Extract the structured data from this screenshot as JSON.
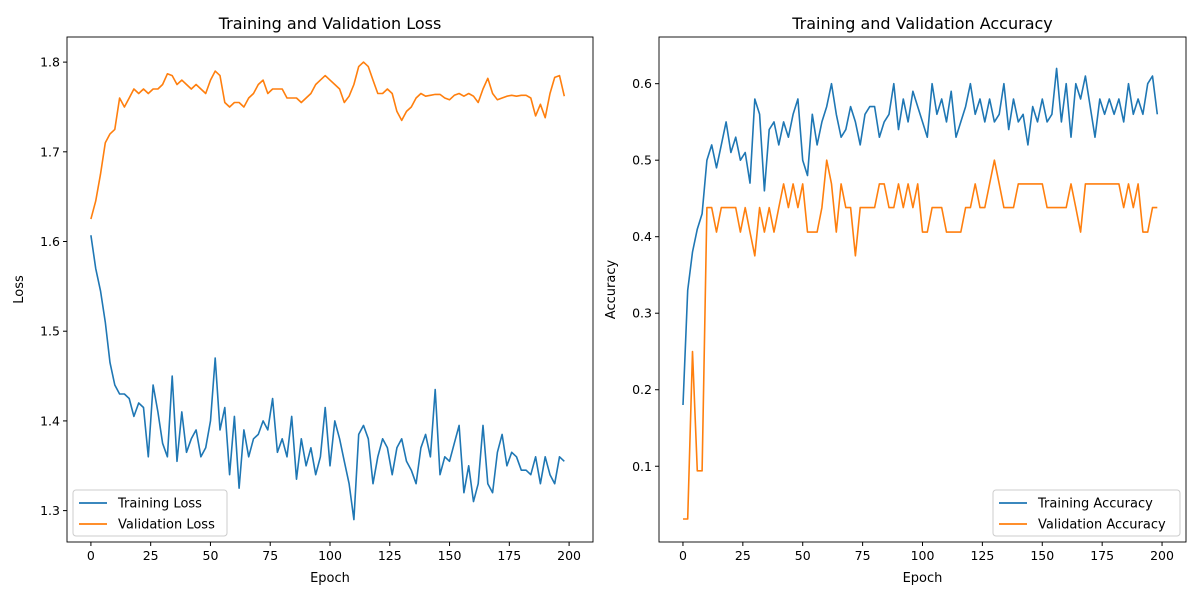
{
  "chart_data": [
    {
      "type": "line",
      "title": "Training and Validation Loss",
      "xlabel": "Epoch",
      "ylabel": "Loss",
      "xlim": [
        -10,
        210
      ],
      "ylim": [
        1.265,
        1.828
      ],
      "xticks": [
        0,
        25,
        50,
        75,
        100,
        125,
        150,
        175,
        200
      ],
      "yticks": [
        1.3,
        1.4,
        1.5,
        1.6,
        1.7,
        1.8
      ],
      "ytick_labels": [
        "1.3",
        "1.4",
        "1.5",
        "1.6",
        "1.7",
        "1.8"
      ],
      "legend_position": "lower-left",
      "grid": false,
      "x_step": 2,
      "series": [
        {
          "name": "Training Loss",
          "color": "#1f77b4",
          "values": [
            1.607,
            1.57,
            1.545,
            1.51,
            1.465,
            1.44,
            1.43,
            1.43,
            1.425,
            1.405,
            1.42,
            1.415,
            1.36,
            1.44,
            1.41,
            1.375,
            1.36,
            1.45,
            1.355,
            1.41,
            1.365,
            1.38,
            1.39,
            1.36,
            1.37,
            1.4,
            1.47,
            1.39,
            1.415,
            1.34,
            1.405,
            1.325,
            1.39,
            1.36,
            1.38,
            1.385,
            1.4,
            1.39,
            1.425,
            1.365,
            1.38,
            1.36,
            1.405,
            1.335,
            1.38,
            1.35,
            1.37,
            1.34,
            1.36,
            1.415,
            1.35,
            1.4,
            1.38,
            1.355,
            1.33,
            1.29,
            1.385,
            1.395,
            1.38,
            1.33,
            1.36,
            1.38,
            1.37,
            1.34,
            1.37,
            1.38,
            1.355,
            1.345,
            1.33,
            1.37,
            1.385,
            1.36,
            1.435,
            1.34,
            1.36,
            1.355,
            1.375,
            1.395,
            1.32,
            1.35,
            1.31,
            1.33,
            1.395,
            1.33,
            1.32,
            1.365,
            1.385,
            1.35,
            1.365,
            1.36,
            1.345,
            1.345,
            1.34,
            1.36,
            1.33,
            1.36,
            1.34,
            1.33,
            1.36,
            1.355
          ]
        },
        {
          "name": "Validation Loss",
          "color": "#ff7f0e",
          "values": [
            1.625,
            1.645,
            1.675,
            1.71,
            1.72,
            1.725,
            1.76,
            1.75,
            1.76,
            1.77,
            1.765,
            1.77,
            1.765,
            1.77,
            1.77,
            1.775,
            1.787,
            1.785,
            1.775,
            1.78,
            1.775,
            1.77,
            1.775,
            1.77,
            1.765,
            1.78,
            1.79,
            1.785,
            1.755,
            1.75,
            1.755,
            1.755,
            1.75,
            1.76,
            1.765,
            1.775,
            1.78,
            1.765,
            1.77,
            1.77,
            1.77,
            1.76,
            1.76,
            1.76,
            1.755,
            1.76,
            1.765,
            1.775,
            1.78,
            1.785,
            1.78,
            1.775,
            1.77,
            1.755,
            1.762,
            1.775,
            1.795,
            1.8,
            1.795,
            1.78,
            1.765,
            1.765,
            1.77,
            1.765,
            1.745,
            1.735,
            1.745,
            1.75,
            1.76,
            1.765,
            1.762,
            1.763,
            1.764,
            1.764,
            1.76,
            1.758,
            1.763,
            1.765,
            1.762,
            1.765,
            1.762,
            1.755,
            1.77,
            1.782,
            1.765,
            1.758,
            1.76,
            1.762,
            1.763,
            1.762,
            1.763,
            1.763,
            1.76,
            1.74,
            1.753,
            1.738,
            1.765,
            1.783,
            1.785,
            1.762
          ]
        }
      ]
    },
    {
      "type": "line",
      "title": "Training and Validation Accuracy",
      "xlabel": "Epoch",
      "ylabel": "Accuracy",
      "xlim": [
        -10,
        210
      ],
      "ylim": [
        0.001,
        0.661
      ],
      "xticks": [
        0,
        25,
        50,
        75,
        100,
        125,
        150,
        175,
        200
      ],
      "yticks": [
        0.1,
        0.2,
        0.3,
        0.4,
        0.5,
        0.6
      ],
      "ytick_labels": [
        "0.1",
        "0.2",
        "0.3",
        "0.4",
        "0.5",
        "0.6"
      ],
      "legend_position": "lower-right",
      "grid": false,
      "x_step": 2,
      "series": [
        {
          "name": "Training Accuracy",
          "color": "#1f77b4",
          "values": [
            0.18,
            0.33,
            0.38,
            0.41,
            0.43,
            0.5,
            0.52,
            0.49,
            0.52,
            0.55,
            0.51,
            0.53,
            0.5,
            0.51,
            0.47,
            0.58,
            0.56,
            0.46,
            0.54,
            0.55,
            0.52,
            0.55,
            0.53,
            0.56,
            0.58,
            0.5,
            0.48,
            0.56,
            0.52,
            0.55,
            0.57,
            0.6,
            0.56,
            0.53,
            0.54,
            0.57,
            0.55,
            0.52,
            0.56,
            0.57,
            0.57,
            0.53,
            0.55,
            0.56,
            0.6,
            0.54,
            0.58,
            0.55,
            0.59,
            0.57,
            0.55,
            0.53,
            0.6,
            0.56,
            0.58,
            0.55,
            0.59,
            0.53,
            0.55,
            0.57,
            0.6,
            0.56,
            0.58,
            0.55,
            0.58,
            0.55,
            0.56,
            0.6,
            0.54,
            0.58,
            0.55,
            0.56,
            0.52,
            0.57,
            0.55,
            0.58,
            0.55,
            0.56,
            0.62,
            0.55,
            0.6,
            0.53,
            0.6,
            0.58,
            0.61,
            0.57,
            0.53,
            0.58,
            0.56,
            0.58,
            0.56,
            0.58,
            0.55,
            0.6,
            0.56,
            0.58,
            0.56,
            0.6,
            0.61,
            0.56
          ]
        },
        {
          "name": "Validation Accuracy",
          "color": "#ff7f0e",
          "values": [
            0.031,
            0.031,
            0.25,
            0.094,
            0.094,
            0.438,
            0.438,
            0.406,
            0.438,
            0.438,
            0.438,
            0.438,
            0.406,
            0.438,
            0.406,
            0.375,
            0.438,
            0.406,
            0.438,
            0.406,
            0.438,
            0.469,
            0.438,
            0.469,
            0.438,
            0.469,
            0.406,
            0.406,
            0.406,
            0.438,
            0.5,
            0.469,
            0.406,
            0.469,
            0.438,
            0.438,
            0.375,
            0.438,
            0.438,
            0.438,
            0.438,
            0.469,
            0.469,
            0.438,
            0.438,
            0.469,
            0.438,
            0.469,
            0.438,
            0.469,
            0.406,
            0.406,
            0.438,
            0.438,
            0.438,
            0.406,
            0.406,
            0.406,
            0.406,
            0.438,
            0.438,
            0.469,
            0.438,
            0.438,
            0.469,
            0.5,
            0.469,
            0.438,
            0.438,
            0.438,
            0.469,
            0.469,
            0.469,
            0.469,
            0.469,
            0.469,
            0.438,
            0.438,
            0.438,
            0.438,
            0.438,
            0.469,
            0.438,
            0.406,
            0.469,
            0.469,
            0.469,
            0.469,
            0.469,
            0.469,
            0.469,
            0.469,
            0.438,
            0.469,
            0.438,
            0.469,
            0.406,
            0.406,
            0.438,
            0.438
          ]
        }
      ]
    }
  ]
}
